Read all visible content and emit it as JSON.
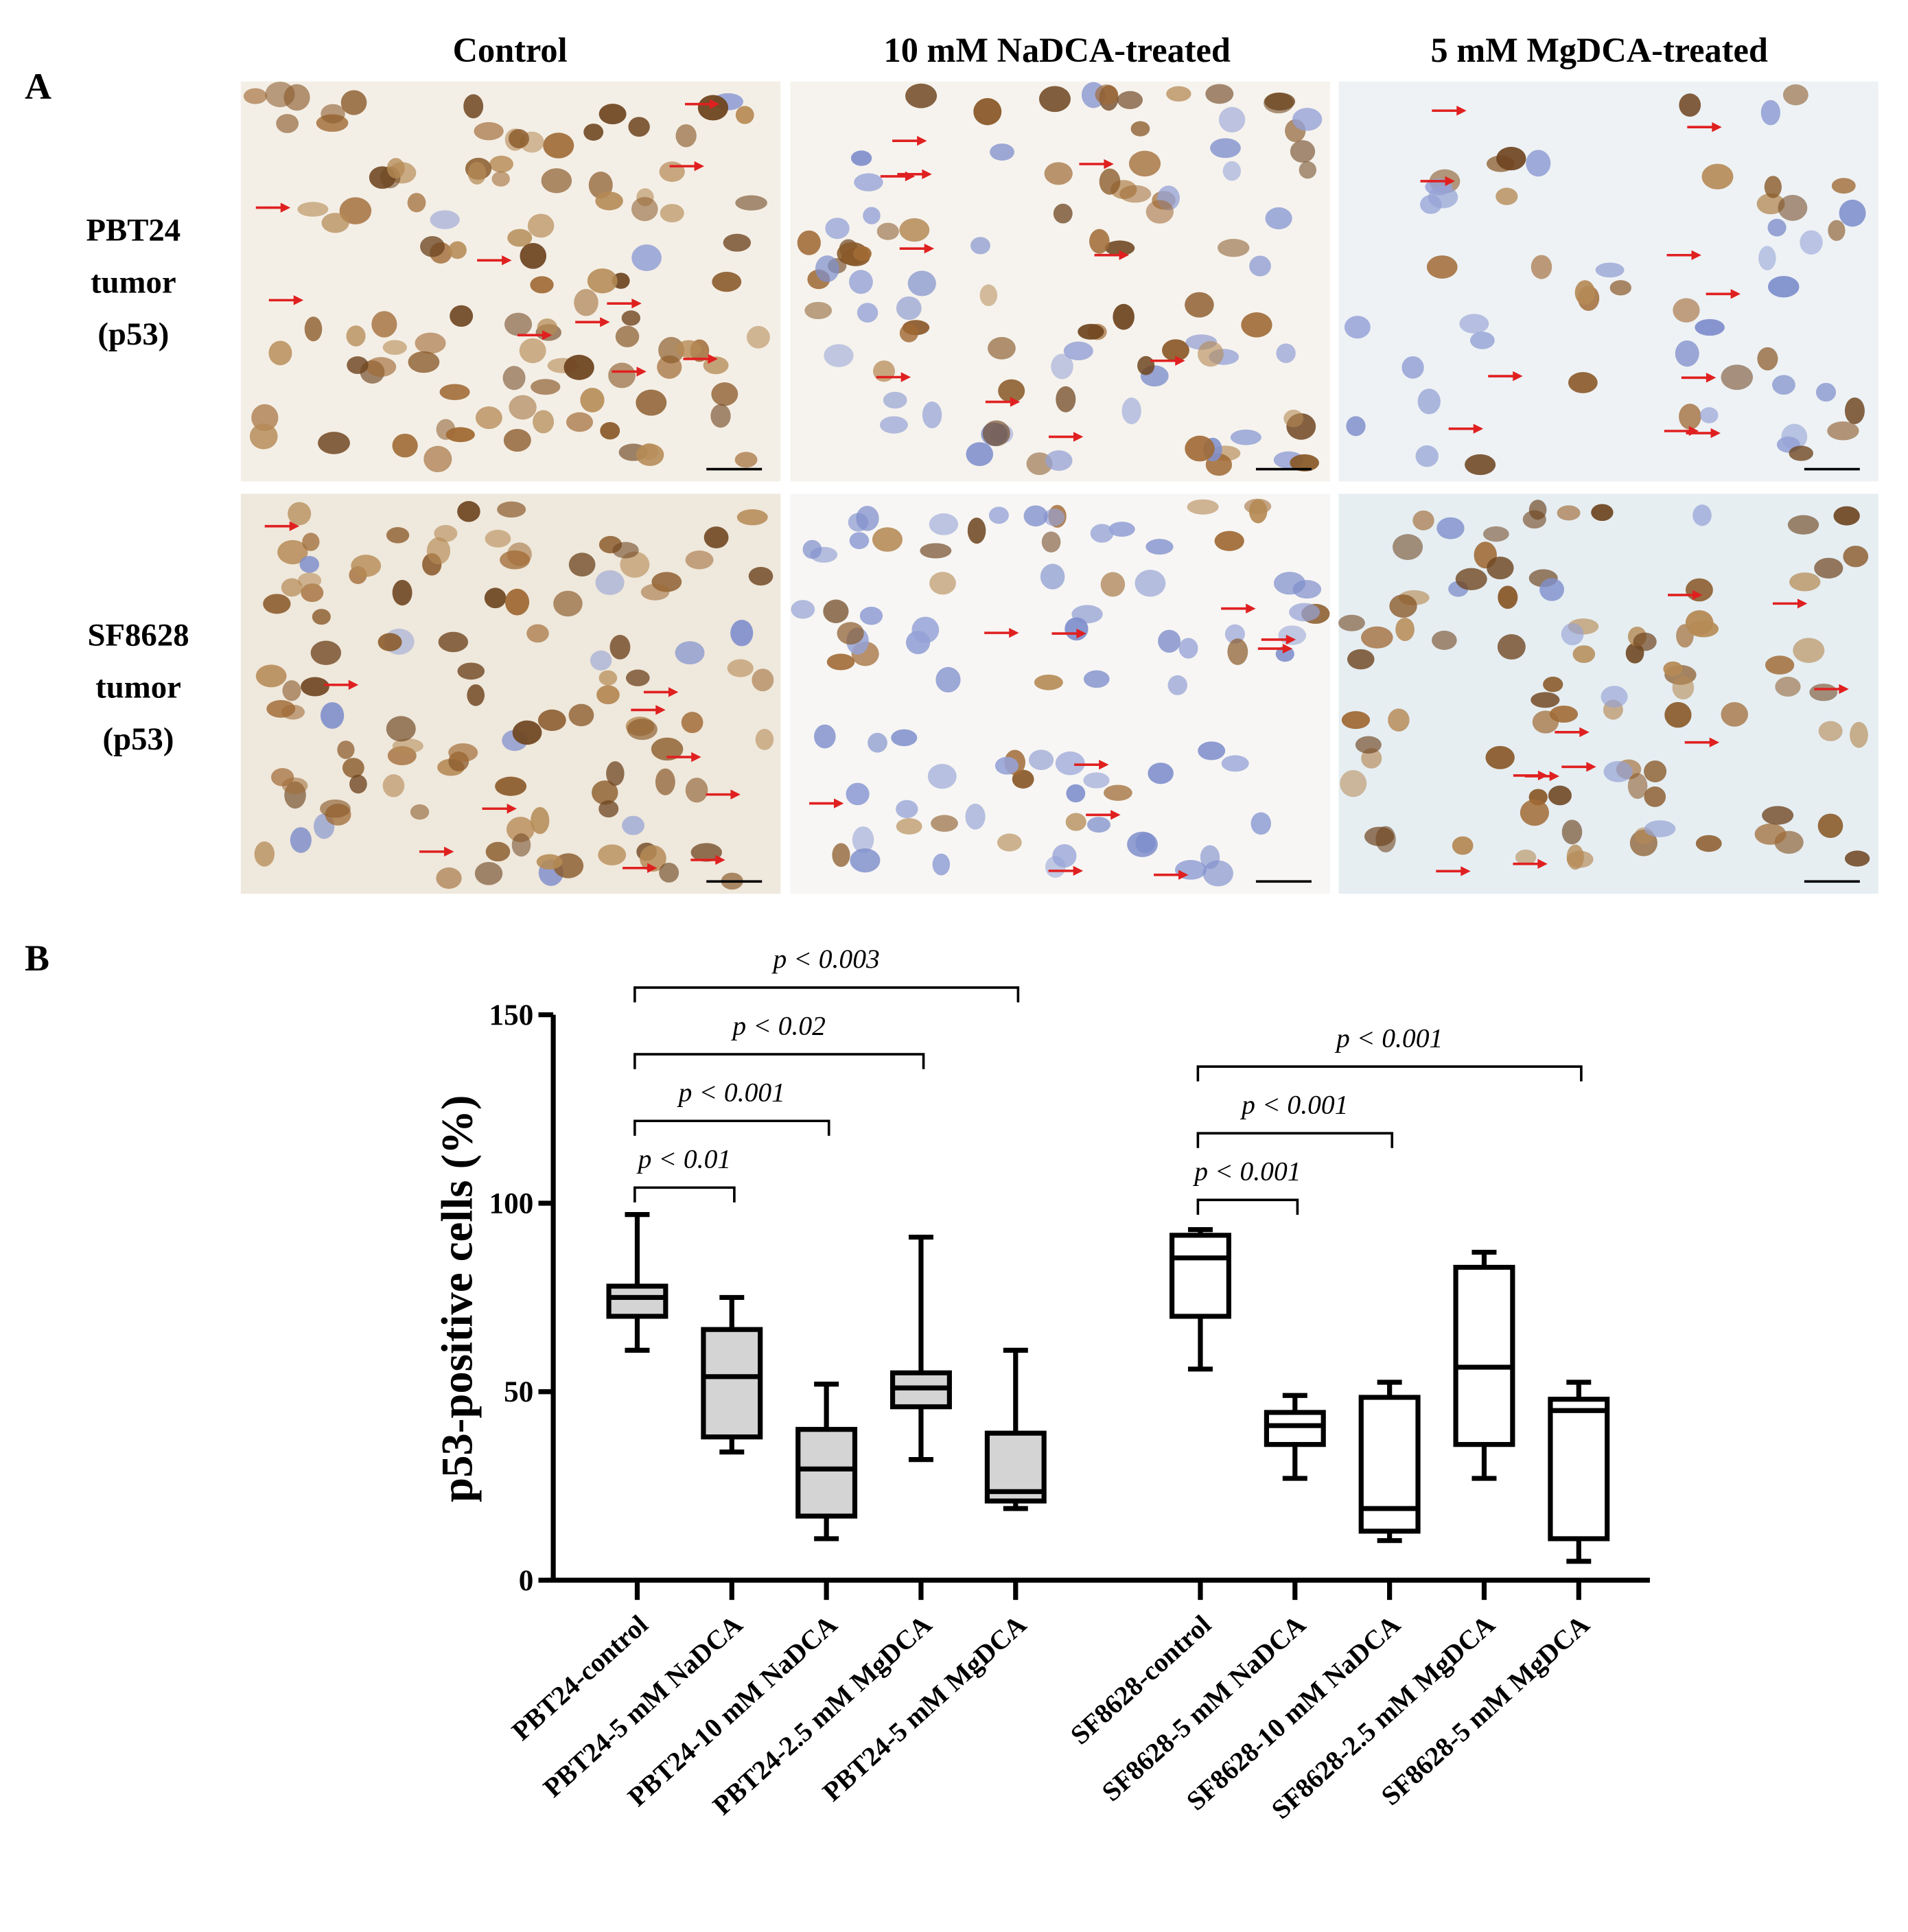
{
  "panel_labels": [
    "A",
    "B"
  ],
  "panel_a": {
    "columns": [
      "Control",
      "10 mM NaDCA-treated",
      "5 mM MgDCA-treated"
    ],
    "rows": [
      [
        "PBT24",
        "tumor",
        "(p53)"
      ],
      [
        "SF8628",
        "tumor",
        "(p53)"
      ]
    ]
  },
  "chart_data": {
    "type": "box",
    "y_label": "p53-positive cells (%)",
    "categories": [
      "PBT24-control",
      "PBT24-5 mM NaDCA",
      "PBT24-10 mM NaDCA",
      "PBT24-2.5 mM MgDCA",
      "PBT24-5 mM MgDCA",
      "SF8628-control",
      "SF8628-5 mM NaDCA",
      "SF8628-10 mM NaDCA",
      "SF8628-2.5 mM MgDCA",
      "SF8628-5 mM MgDCA"
    ],
    "min": [
      61,
      34,
      11,
      32,
      19,
      56,
      27,
      10.5,
      27,
      5
    ],
    "q1": [
      70,
      38,
      17,
      46,
      21,
      70,
      36,
      13,
      36,
      11
    ],
    "median": [
      75,
      54,
      29.5,
      51,
      23.5,
      85.5,
      41,
      19,
      56.5,
      45
    ],
    "q3": [
      78,
      66.5,
      40,
      55,
      39,
      91.5,
      44.5,
      48.5,
      83,
      48
    ],
    "max": [
      97,
      75,
      52,
      91,
      61,
      93,
      49,
      52.5,
      87,
      52.5
    ],
    "box_colors": [
      "#d4d4d4",
      "#d4d4d4",
      "#d4d4d4",
      "#d4d4d4",
      "#d4d4d4",
      "#ffffff",
      "#ffffff",
      "#ffffff",
      "#ffffff",
      "#ffffff"
    ],
    "ylim": [
      0,
      150
    ],
    "yticks": [
      0,
      50,
      100,
      150
    ],
    "brackets": [
      {
        "from": "PBT24-control",
        "to": "PBT24-5 mM NaDCA",
        "label": "p < 0.01"
      },
      {
        "from": "PBT24-control",
        "to": "PBT24-10 mM NaDCA",
        "label": "p < 0.001"
      },
      {
        "from": "PBT24-control",
        "to": "PBT24-2.5 mM MgDCA",
        "label": "p < 0.02"
      },
      {
        "from": "PBT24-control",
        "to": "PBT24-5 mM MgDCA",
        "label": "p < 0.003"
      },
      {
        "from": "SF8628-control",
        "to": "SF8628-5 mM NaDCA",
        "label": "p < 0.001"
      },
      {
        "from": "SF8628-control",
        "to": "SF8628-10 mM NaDCA",
        "label": "p < 0.001"
      },
      {
        "from": "SF8628-control",
        "to": "SF8628-5 mM MgDCA",
        "label": "p < 0.001"
      }
    ]
  }
}
